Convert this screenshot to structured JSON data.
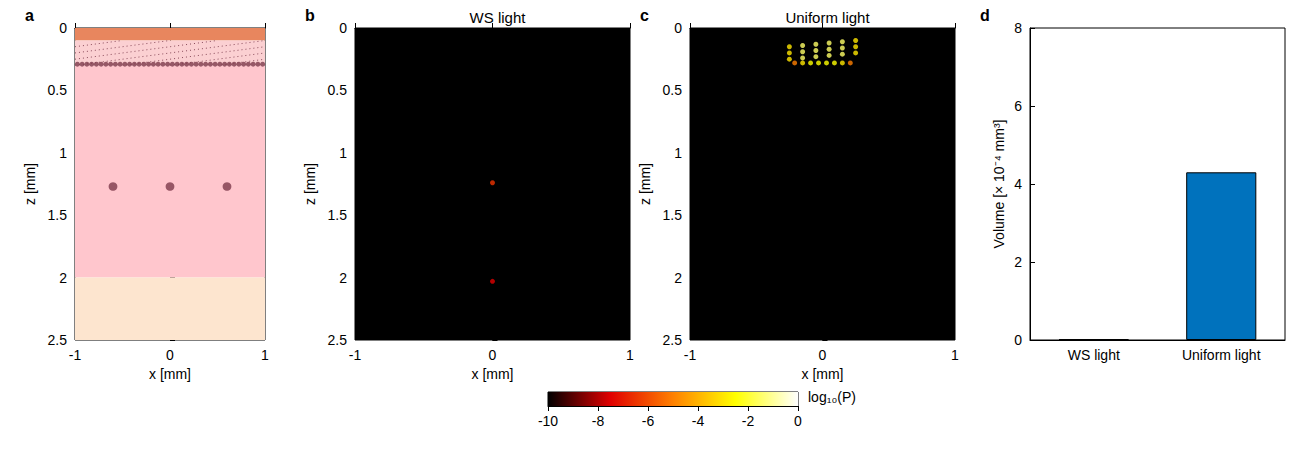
{
  "chart_data": [
    {
      "panel": "a",
      "type": "schematic",
      "xlabel": "x [mm]",
      "ylabel": "z [mm]",
      "xlim": [
        -1,
        1
      ],
      "xticks": [
        -1,
        0,
        1
      ],
      "ylim": [
        0,
        2.5
      ],
      "yticks": [
        0,
        0.5,
        1,
        1.5,
        2,
        2.5
      ],
      "layers": [
        {
          "z": [
            0,
            0.1
          ],
          "color": "#e8865e"
        },
        {
          "z": [
            0.1,
            0.3
          ],
          "color": "#fbd0d2",
          "line_style": "dotted"
        },
        {
          "z": [
            0.3,
            2
          ],
          "color": "#ffc6cd"
        },
        {
          "z": [
            2,
            2.5
          ],
          "color": "#fde5cf"
        }
      ],
      "vessels": [
        {
          "x": [
            -0.975,
            -0.925,
            -0.875,
            -0.825,
            -0.775,
            -0.725,
            -0.675,
            -0.625,
            -0.575,
            -0.525,
            -0.475,
            -0.425,
            -0.375,
            -0.325,
            -0.275,
            -0.225,
            -0.175,
            -0.125,
            -0.075,
            -0.025,
            0.025,
            0.075,
            0.125,
            0.175,
            0.225,
            0.275,
            0.325,
            0.375,
            0.425,
            0.475,
            0.525,
            0.575,
            0.625,
            0.675,
            0.725,
            0.775,
            0.825,
            0.875,
            0.925,
            0.975
          ],
          "z": [
            0.29,
            0.29,
            0.29,
            0.29,
            0.29,
            0.29,
            0.29,
            0.29,
            0.29,
            0.29,
            0.29,
            0.29,
            0.29,
            0.29,
            0.29,
            0.29,
            0.29,
            0.29,
            0.29,
            0.29,
            0.29,
            0.29,
            0.29,
            0.29,
            0.29,
            0.29,
            0.29,
            0.29,
            0.29,
            0.29,
            0.29,
            0.29,
            0.29,
            0.29,
            0.29,
            0.29,
            0.29,
            0.29,
            0.29,
            0.29
          ],
          "diameter": 0.04,
          "color": "#7d3a4b"
        },
        {
          "x": [
            -0.6,
            0,
            0.6
          ],
          "z": [
            1.27,
            1.27,
            1.27
          ],
          "diameter": 0.07,
          "color": "#7d3a4b"
        }
      ]
    },
    {
      "panel": "b",
      "type": "heatmap",
      "title": "WS light",
      "xlabel": "x [mm]",
      "ylabel": "z [mm]",
      "xlim": [
        -1,
        1
      ],
      "xticks": [
        -1,
        0,
        1
      ],
      "ylim": [
        0,
        2.5
      ],
      "yticks": [
        0,
        0.5,
        1,
        1.5,
        2,
        2.5
      ],
      "cells": {
        "x": [
          0,
          0
        ],
        "z": [
          1.24,
          2.03
        ],
        "values": [
          -6.5,
          -7.5
        ]
      }
    },
    {
      "panel": "c",
      "type": "heatmap",
      "title": "Uniform light",
      "xlabel": "x [mm]",
      "ylabel": "z [mm]",
      "xlim": [
        -1,
        1
      ],
      "xticks": [
        -1,
        0,
        1
      ],
      "ylim": [
        0,
        2.5
      ],
      "yticks": [
        0,
        0.5,
        1,
        1.5,
        2,
        2.5
      ],
      "cells": {
        "x": [
          -0.21,
          -0.15,
          -0.09,
          -0.03,
          0.03,
          0.09,
          0.15,
          0.21,
          -0.25,
          -0.15,
          -0.05,
          0.05,
          0.15,
          0.25,
          -0.25,
          -0.15,
          -0.05,
          0.05,
          0.15,
          0.25,
          -0.25,
          -0.15,
          -0.05,
          0.05,
          0.15,
          0.25
        ],
        "z": [
          0.28,
          0.28,
          0.28,
          0.28,
          0.28,
          0.28,
          0.28,
          0.28,
          0.15,
          0.14,
          0.13,
          0.12,
          0.11,
          0.1,
          0.2,
          0.19,
          0.18,
          0.17,
          0.16,
          0.15,
          0.25,
          0.24,
          0.23,
          0.22,
          0.21,
          0.2
        ],
        "values": [
          -5,
          -3,
          -2.5,
          -2.5,
          -2.5,
          -2.5,
          -3,
          -5,
          -3,
          -1.5,
          -1.5,
          -1.5,
          -1.5,
          -3,
          -3,
          -1.5,
          -1.5,
          -1.5,
          -1.5,
          -3,
          -3,
          -1.5,
          -1.5,
          -1.5,
          -1.5,
          -3
        ]
      }
    },
    {
      "panel": "d",
      "type": "bar",
      "ylabel": "Volume [× 10⁻⁴ mm³]",
      "categories": [
        "WS light",
        "Uniform light"
      ],
      "values": [
        0.02,
        4.3
      ],
      "color": "#0072bd",
      "ylim": [
        0,
        8
      ],
      "yticks": [
        0,
        2,
        4,
        6,
        8
      ]
    }
  ],
  "colorbar": {
    "label": "log₁₀(P)",
    "lim": [
      -10,
      0
    ],
    "ticks": [
      -10,
      -8,
      -6,
      -4,
      -2,
      0
    ],
    "colors": [
      "#000000",
      "#e00000",
      "#ff8000",
      "#ffff00",
      "#ffffff"
    ]
  }
}
